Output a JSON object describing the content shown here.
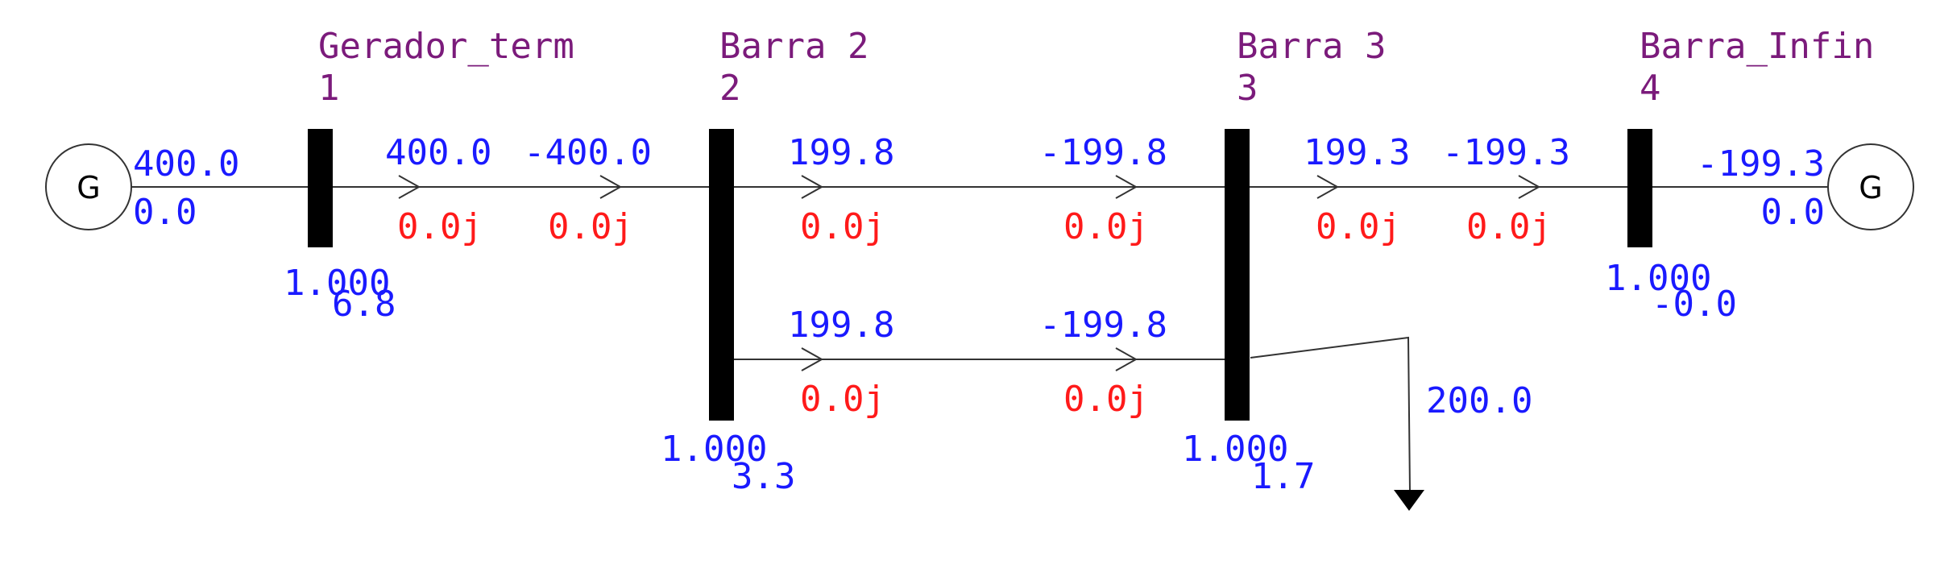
{
  "colors": {
    "bus_name": "#7b1b7b",
    "power_p": "#1a1aff",
    "power_q": "#ff1a1a",
    "line": "#333333",
    "bar": "#000000"
  },
  "buses": [
    {
      "name": "Gerador_term",
      "number": "1",
      "voltage": "1.000",
      "angle": "6.8"
    },
    {
      "name": "Barra 2",
      "number": "2",
      "voltage": "1.000",
      "angle": "3.3"
    },
    {
      "name": "Barra 3",
      "number": "3",
      "voltage": "1.000",
      "angle": "1.7"
    },
    {
      "name": "Barra_Infin",
      "number": "4",
      "voltage": "1.000",
      "angle": "-0.0"
    }
  ],
  "generators": [
    {
      "symbol": "G",
      "p": "400.0",
      "q": "0.0"
    },
    {
      "symbol": "G",
      "p": "-199.3",
      "q": "0.0"
    }
  ],
  "branches": [
    {
      "from_p": "400.0",
      "from_q": "0.0j",
      "to_p": "-400.0",
      "to_q": "0.0j"
    },
    {
      "from_p": "199.8",
      "from_q": "0.0j",
      "to_p": "-199.8",
      "to_q": "0.0j"
    },
    {
      "from_p": "199.8",
      "from_q": "0.0j",
      "to_p": "-199.8",
      "to_q": "0.0j"
    },
    {
      "from_p": "199.3",
      "from_q": "0.0j",
      "to_p": "-199.3",
      "to_q": "0.0j"
    }
  ],
  "load": {
    "p": "200.0"
  }
}
